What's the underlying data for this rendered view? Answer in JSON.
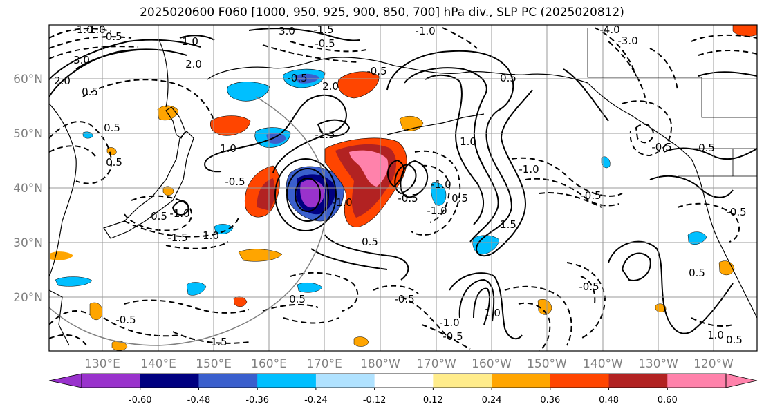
{
  "title": "2025020600 F060 [1000, 950, 925, 900, 850, 700] hPa div., SLP PC (2025020812)",
  "lat_labels": [
    "60°N",
    "50°N",
    "40°N",
    "30°N",
    "20°N"
  ],
  "lon_labels": [
    "130°E",
    "140°E",
    "150°E",
    "160°E",
    "170°E",
    "180°W",
    "170°W",
    "160°W",
    "150°W",
    "140°W",
    "130°W",
    "120°W"
  ],
  "colorbar": {
    "colors": [
      "#9932cc",
      "#000080",
      "#3a5fcd",
      "#00bfff",
      "#b0e2ff",
      "#ffffff",
      "#ffec8b",
      "#ffa500",
      "#ff4500",
      "#b22222",
      "#ff82ab"
    ],
    "ticks": [
      "-0.60",
      "-0.48",
      "-0.36",
      "-0.24",
      "-0.12",
      "0.12",
      "0.24",
      "0.36",
      "0.48",
      "0.60"
    ]
  },
  "contour_labels": [
    "-1.0",
    "-1.0",
    "-0.5",
    "3.0",
    "-1.0",
    "-4.0",
    "-3.0",
    "-1.5",
    "3.0",
    "2.0",
    "-0.5",
    "0.5",
    "2.0",
    "-0.5",
    "2.0",
    "-0.5",
    "1.0",
    "0.5",
    "0.5",
    "-1.5",
    "1.0",
    "-0.5",
    "-1.0",
    "0.5",
    "1.0",
    "-1.5",
    "-1.0",
    "-0.5",
    "-1.0",
    "0.5",
    "-1.0",
    "1.5",
    "-1.0",
    "-0.5",
    "1.0",
    "0.5",
    "0.5",
    "-0.5",
    "-1.0",
    "-0.5",
    "0.5",
    "-0.5",
    "-1.5",
    "1.0",
    "-0.5",
    "0.5",
    "1.0",
    "-0.5",
    "-0.5",
    "0.5",
    "0.5"
  ]
}
